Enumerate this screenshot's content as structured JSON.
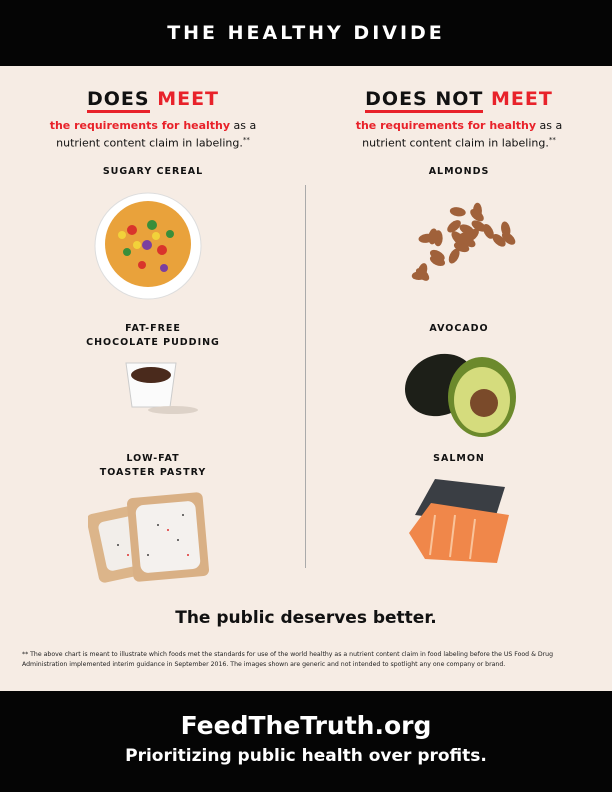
{
  "header": {
    "title": "THE HEALTHY DIVIDE"
  },
  "left": {
    "does": "DOES",
    "meet": "MEET",
    "sub_red": "the requirements for healthy",
    "sub_rest1": " as a",
    "sub_rest2": "nutrient content claim in labeling.",
    "mark": "**",
    "items": [
      {
        "label1": "SUGARY CEREAL",
        "label2": ""
      },
      {
        "label1": "FAT-FREE",
        "label2": "CHOCOLATE PUDDING"
      },
      {
        "label1": "LOW-FAT",
        "label2": "TOASTER PASTRY"
      }
    ]
  },
  "right": {
    "does": "DOES NOT",
    "meet": "MEET",
    "sub_red": "the requirements for healthy",
    "sub_rest1": " as a",
    "sub_rest2": "nutrient content claim in labeling.",
    "mark": "**",
    "items": [
      {
        "label1": "ALMONDS"
      },
      {
        "label1": "AVOCADO"
      },
      {
        "label1": "SALMON"
      }
    ]
  },
  "tagline": "The public deserves better.",
  "footnote": "** The above chart is meant to illustrate which foods met the standards for use of the world healthy as a nutrient content claim in food labeling before the US Food & Drug Administration implemented interim guidance in September 2016. The images shown are generic and not intended to spotlight any one company or brand.",
  "footer": {
    "site": "FeedTheTruth.org",
    "slogan": "Prioritizing public health over profits."
  },
  "colors": {
    "accent": "#e8222a",
    "background": "#f6ece4",
    "bar": "#050505"
  }
}
